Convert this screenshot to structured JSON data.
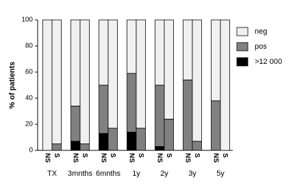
{
  "chart_data": {
    "type": "bar",
    "stacked": true,
    "y_label": "% of patients",
    "categories": [
      "NS",
      "S",
      "NS",
      "S",
      "NS",
      "S",
      "NS",
      "S",
      "NS",
      "S",
      "NS",
      "S",
      "NS",
      "S"
    ],
    "groups": [
      "TX",
      "3mnths",
      "6mnths",
      "1y",
      "2y",
      "3y",
      "5y"
    ],
    "series": [
      {
        "name": "neg",
        "color": "#f0f0f0",
        "values": [
          100,
          95,
          66,
          95,
          50,
          83,
          41,
          83,
          50,
          76,
          46,
          93,
          62,
          100
        ]
      },
      {
        "name": "pos",
        "color": "#808080",
        "values": [
          0,
          5,
          27,
          5,
          37,
          17,
          45,
          17,
          47,
          24,
          54,
          7,
          38,
          0
        ]
      },
      {
        "name": ">12 000",
        "color": "#000000",
        "values": [
          0,
          0,
          7,
          0,
          13,
          0,
          14,
          0,
          3,
          0,
          0,
          0,
          0,
          0
        ]
      }
    ],
    "ylim": [
      0,
      100
    ],
    "yticks": [
      0,
      20,
      40,
      60,
      80,
      100
    ],
    "legend": "right"
  }
}
